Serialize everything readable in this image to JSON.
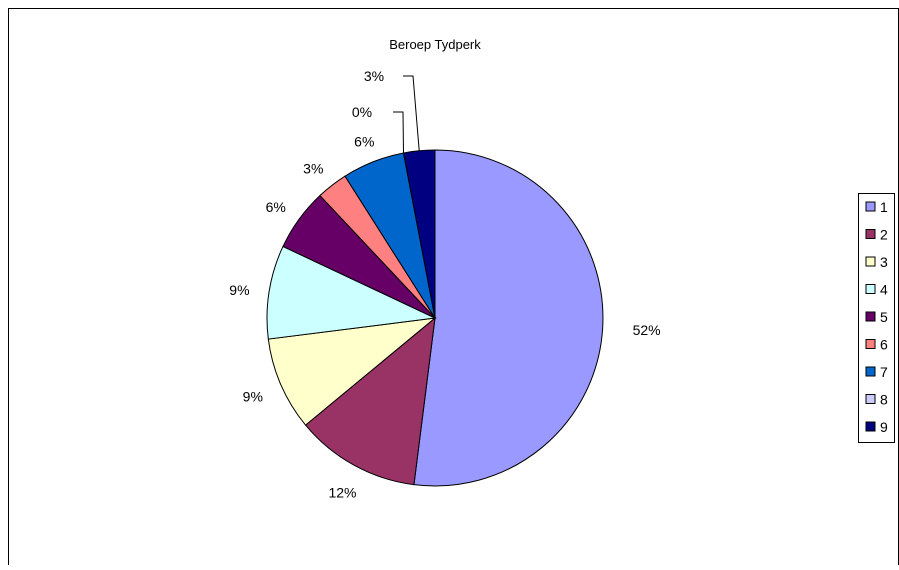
{
  "chart_data": {
    "type": "pie",
    "title": "Beroep Tydperk",
    "categories": [
      "1",
      "2",
      "3",
      "4",
      "5",
      "6",
      "7",
      "8",
      "9"
    ],
    "values": [
      52,
      12,
      9,
      9,
      6,
      3,
      6,
      0,
      3
    ],
    "data_labels": [
      "52%",
      "12%",
      "9%",
      "9%",
      "6%",
      "3%",
      "6%",
      "0%",
      "3%"
    ],
    "colors": [
      "#9999ff",
      "#993366",
      "#ffffcc",
      "#ccffff",
      "#660066",
      "#ff8080",
      "#0066cc",
      "#ccccff",
      "#000080"
    ],
    "legend": "right",
    "start_angle_deg": 0,
    "direction": "clockwise"
  }
}
